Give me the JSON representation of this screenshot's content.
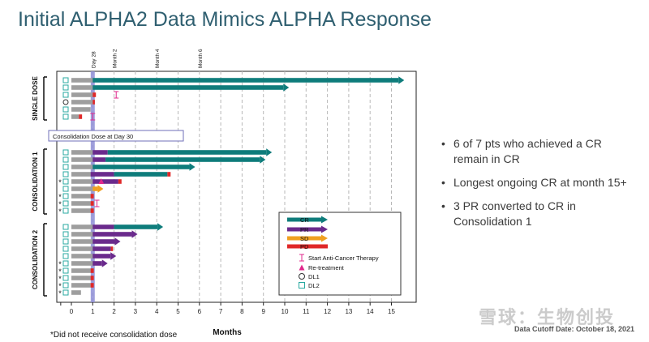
{
  "title": "Initial ALPHA2 Data Mimics ALPHA Response",
  "bullets": [
    "6 of 7 pts who achieved a CR remain in CR",
    "Longest ongoing CR at month 15+",
    "3 PR converted to CR in Consolidation 1"
  ],
  "footnote": "*Did not receive consolidation dose",
  "cutoff": "Data Cutoff Date: October 18, 2021",
  "watermark": "雪球：生物创投",
  "colors": {
    "cr": "#0e7c7b",
    "pr": "#6a2a8c",
    "sd": "#f0a020",
    "pd": "#e02828",
    "baseline": "#9e9e9e",
    "therapy": "#e0288c",
    "consolidation": "#8e8ed6"
  },
  "chart_data": {
    "type": "bar",
    "xlabel": "Months",
    "xlim": [
      -1,
      15.5
    ],
    "xticks": [
      0,
      1,
      2,
      3,
      4,
      5,
      6,
      7,
      8,
      9,
      10,
      11,
      12,
      13,
      14,
      15
    ],
    "time_markers": [
      {
        "label": "Day 28",
        "x": 1
      },
      {
        "label": "Month 2",
        "x": 2
      },
      {
        "label": "Month 4",
        "x": 4
      },
      {
        "label": "Month 6",
        "x": 6
      }
    ],
    "consolidation_label": "Consolidation Dose at Day 30",
    "consolidation_x": 1,
    "groups": [
      {
        "label": "SINGLE DOSE",
        "patients": [
          {
            "dose": "DL2",
            "star": false,
            "segments": [
              {
                "s": "base",
                "from": 0,
                "to": 1
              },
              {
                "s": "CR",
                "from": 1,
                "to": 15.6
              }
            ],
            "ongoing": true
          },
          {
            "dose": "DL2",
            "star": false,
            "segments": [
              {
                "s": "base",
                "from": 0,
                "to": 1
              },
              {
                "s": "CR",
                "from": 1,
                "to": 10.2
              }
            ],
            "ongoing": true
          },
          {
            "dose": "DL2",
            "star": false,
            "segments": [
              {
                "s": "base",
                "from": 0,
                "to": 1
              },
              {
                "s": "PD",
                "from": 1,
                "to": 1.15
              }
            ],
            "therapy": 2.1
          },
          {
            "dose": "DL1",
            "star": false,
            "segments": [
              {
                "s": "base",
                "from": 0,
                "to": 1
              },
              {
                "s": "PD",
                "from": 1,
                "to": 1.1
              }
            ]
          },
          {
            "dose": "DL2",
            "star": false,
            "segments": [
              {
                "s": "base",
                "from": 0,
                "to": 0.9
              }
            ]
          },
          {
            "dose": "DL2",
            "star": false,
            "segments": [
              {
                "s": "base",
                "from": 0,
                "to": 0.35
              },
              {
                "s": "PD",
                "from": 0.35,
                "to": 0.5
              }
            ],
            "therapy": 1
          }
        ]
      },
      {
        "label": "CONSOLIDATION 1",
        "patients": [
          {
            "dose": "DL2",
            "star": false,
            "segments": [
              {
                "s": "base",
                "from": 0,
                "to": 1
              },
              {
                "s": "PR",
                "from": 1,
                "to": 1.7
              },
              {
                "s": "CR",
                "from": 1.7,
                "to": 9.4
              }
            ],
            "ongoing": true
          },
          {
            "dose": "DL2",
            "star": false,
            "segments": [
              {
                "s": "base",
                "from": 0,
                "to": 1
              },
              {
                "s": "PR",
                "from": 1,
                "to": 1.6
              },
              {
                "s": "CR",
                "from": 1.6,
                "to": 9.1
              }
            ],
            "ongoing": true
          },
          {
            "dose": "DL2",
            "star": false,
            "segments": [
              {
                "s": "base",
                "from": 0,
                "to": 1
              },
              {
                "s": "CR",
                "from": 1,
                "to": 5.8
              }
            ],
            "ongoing": true
          },
          {
            "dose": "DL2",
            "star": false,
            "segments": [
              {
                "s": "base",
                "from": 0,
                "to": 0.9
              },
              {
                "s": "PR",
                "from": 0.9,
                "to": 2
              },
              {
                "s": "CR",
                "from": 2,
                "to": 4.5
              },
              {
                "s": "PD",
                "from": 4.5,
                "to": 4.65
              }
            ]
          },
          {
            "dose": "DL2",
            "star": true,
            "segments": [
              {
                "s": "base",
                "from": 0,
                "to": 1
              },
              {
                "s": "PR",
                "from": 1,
                "to": 2.2
              },
              {
                "s": "PD",
                "from": 2.2,
                "to": 2.35
              }
            ],
            "retreatment": 1.4
          },
          {
            "dose": "DL2",
            "star": false,
            "segments": [
              {
                "s": "base",
                "from": 0,
                "to": 1
              },
              {
                "s": "SD",
                "from": 1,
                "to": 1.5
              }
            ],
            "ongoing": true
          },
          {
            "dose": "DL2",
            "star": true,
            "segments": [
              {
                "s": "base",
                "from": 0,
                "to": 0.9
              },
              {
                "s": "PD",
                "from": 0.9,
                "to": 1.05
              }
            ]
          },
          {
            "dose": "DL2",
            "star": true,
            "segments": [
              {
                "s": "base",
                "from": 0,
                "to": 0.9
              },
              {
                "s": "PD",
                "from": 0.9,
                "to": 1.05
              }
            ],
            "therapy": 1.2
          },
          {
            "dose": "DL2",
            "star": true,
            "segments": [
              {
                "s": "base",
                "from": 0,
                "to": 0.9
              },
              {
                "s": "PD",
                "from": 0.9,
                "to": 1.05
              }
            ]
          }
        ]
      },
      {
        "label": "CONSOLIDATION 2",
        "patients": [
          {
            "dose": "DL2",
            "star": false,
            "segments": [
              {
                "s": "base",
                "from": 0,
                "to": 1
              },
              {
                "s": "PR",
                "from": 1,
                "to": 2
              },
              {
                "s": "CR",
                "from": 2,
                "to": 4.3
              }
            ],
            "ongoing": true
          },
          {
            "dose": "DL2",
            "star": false,
            "segments": [
              {
                "s": "base",
                "from": 0,
                "to": 1
              },
              {
                "s": "PR",
                "from": 1,
                "to": 3.1
              }
            ],
            "ongoing": true
          },
          {
            "dose": "DL2",
            "star": false,
            "segments": [
              {
                "s": "base",
                "from": 0,
                "to": 1
              },
              {
                "s": "PR",
                "from": 1,
                "to": 2.3
              }
            ],
            "ongoing": true
          },
          {
            "dose": "DL2",
            "star": false,
            "segments": [
              {
                "s": "base",
                "from": 0,
                "to": 1
              },
              {
                "s": "PR",
                "from": 1,
                "to": 1.85
              },
              {
                "s": "PD",
                "from": 1.85,
                "to": 1.95
              }
            ]
          },
          {
            "dose": "DL2",
            "star": false,
            "segments": [
              {
                "s": "base",
                "from": 0,
                "to": 1
              },
              {
                "s": "PR",
                "from": 1,
                "to": 2.1
              }
            ],
            "ongoing": true
          },
          {
            "dose": "DL2",
            "star": true,
            "segments": [
              {
                "s": "base",
                "from": 0,
                "to": 1
              },
              {
                "s": "PR",
                "from": 1,
                "to": 1.7
              }
            ],
            "ongoing": true
          },
          {
            "dose": "DL2",
            "star": true,
            "segments": [
              {
                "s": "base",
                "from": 0,
                "to": 0.9
              },
              {
                "s": "PD",
                "from": 0.9,
                "to": 1.05
              }
            ]
          },
          {
            "dose": "DL2",
            "star": true,
            "segments": [
              {
                "s": "base",
                "from": 0,
                "to": 0.9
              },
              {
                "s": "PD",
                "from": 0.9,
                "to": 1.05
              }
            ]
          },
          {
            "dose": "DL2",
            "star": true,
            "segments": [
              {
                "s": "base",
                "from": 0,
                "to": 0.9
              },
              {
                "s": "PD",
                "from": 0.9,
                "to": 1.05
              }
            ]
          },
          {
            "dose": "DL2",
            "star": true,
            "segments": [
              {
                "s": "base",
                "from": 0,
                "to": 0.45
              }
            ]
          }
        ]
      }
    ],
    "legend": [
      {
        "key": "CR",
        "label": "CR",
        "kind": "arrow"
      },
      {
        "key": "PR",
        "label": "PR",
        "kind": "arrow"
      },
      {
        "key": "SD",
        "label": "SD",
        "kind": "arrow"
      },
      {
        "key": "PD",
        "label": "PD",
        "kind": "bar"
      },
      {
        "key": "therapy",
        "label": "Start Anti-Cancer Therapy",
        "kind": "ibar"
      },
      {
        "key": "retreatment",
        "label": "Re-treatment",
        "kind": "triangle"
      },
      {
        "key": "DL1",
        "label": "DL1",
        "kind": "circle"
      },
      {
        "key": "DL2",
        "label": "DL2",
        "kind": "square"
      }
    ]
  }
}
